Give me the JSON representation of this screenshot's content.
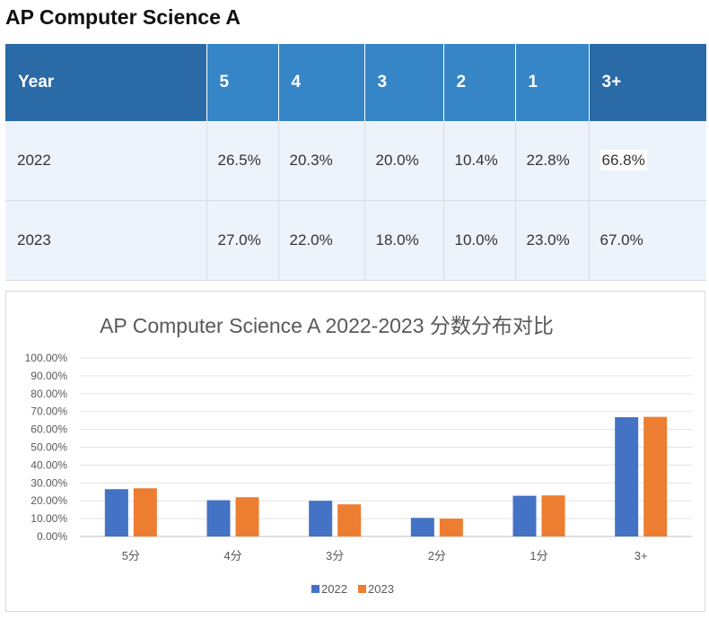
{
  "page_title": "AP Computer Science A",
  "table": {
    "headers": [
      "Year",
      "5",
      "4",
      "3",
      "2",
      "1",
      "3+"
    ],
    "rows": [
      {
        "year": "2022",
        "cells": [
          "26.5%",
          "20.3%",
          "20.0%",
          "10.4%",
          "22.8%",
          "66.8%"
        ]
      },
      {
        "year": "2023",
        "cells": [
          "27.0%",
          "22.0%",
          "18.0%",
          "10.0%",
          "23.0%",
          "67.0%"
        ]
      }
    ],
    "colors": {
      "header_dark": "#2a6aa6",
      "header_mid": "#3685c6",
      "row_bg": "#edf3fb",
      "up": "#ee1c1c",
      "down": "#3f8f3f"
    },
    "row_2023_trend": [
      "up",
      "up",
      "down",
      "down",
      "up",
      "up"
    ]
  },
  "chart_data": {
    "type": "bar",
    "title": "AP Computer Science A 2022-2023 分数分布对比",
    "categories": [
      "5分",
      "4分",
      "3分",
      "2分",
      "1分",
      "3+"
    ],
    "series": [
      {
        "name": "2022",
        "color": "#4472c4",
        "values": [
          26.5,
          20.3,
          20.0,
          10.4,
          22.8,
          66.8
        ]
      },
      {
        "name": "2023",
        "color": "#ed7d31",
        "values": [
          27.0,
          22.0,
          18.0,
          10.0,
          23.0,
          67.0
        ]
      }
    ],
    "y_ticks": [
      "0.00%",
      "10.00%",
      "20.00%",
      "30.00%",
      "40.00%",
      "50.00%",
      "60.00%",
      "70.00%",
      "80.00%",
      "90.00%",
      "100.00%"
    ],
    "ylim": [
      0,
      100
    ],
    "grid": true,
    "legend": "bottom"
  }
}
